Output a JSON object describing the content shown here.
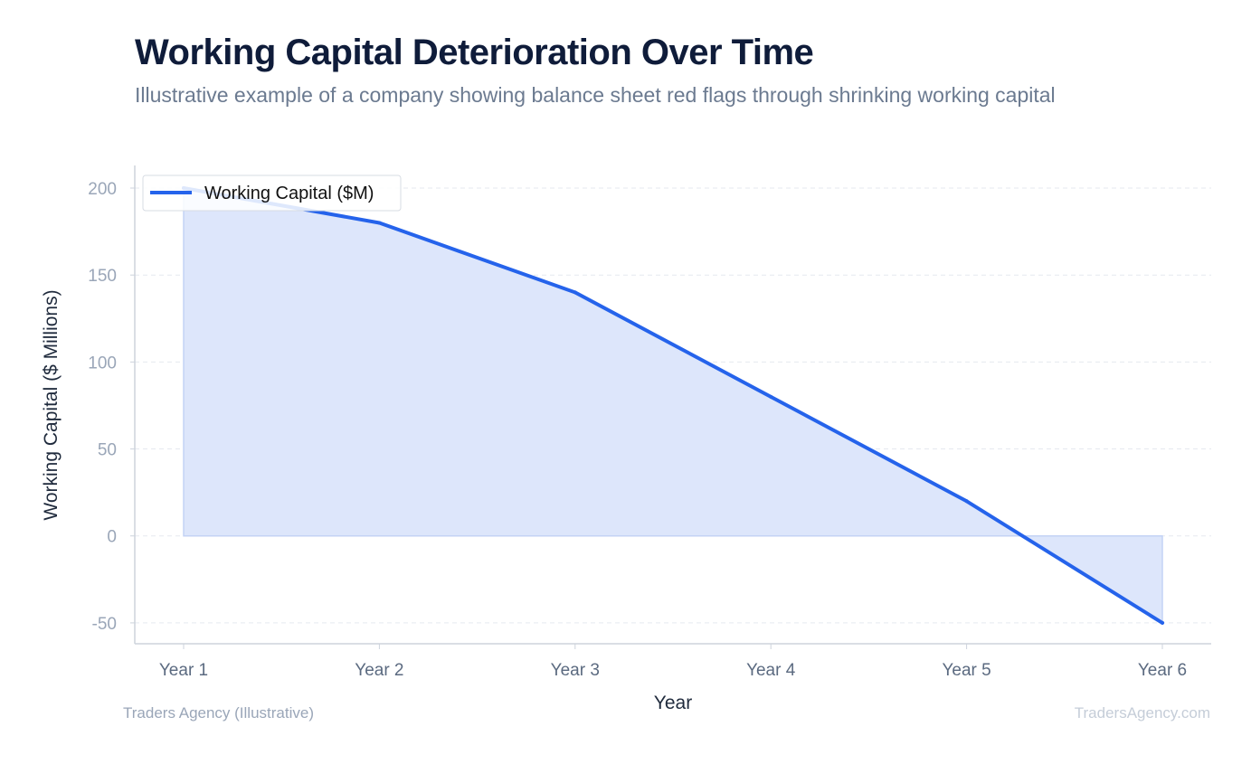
{
  "header": {
    "title": "Working Capital Deterioration Over Time",
    "subtitle": "Illustrative example of a company showing balance sheet red flags through shrinking working capital"
  },
  "footer": {
    "source": "Traders Agency (Illustrative)",
    "watermark": "TradersAgency.com"
  },
  "chart_data": {
    "type": "area",
    "categories": [
      "Year 1",
      "Year 2",
      "Year 3",
      "Year 4",
      "Year 5",
      "Year 6"
    ],
    "series": [
      {
        "name": "Working Capital ($M)",
        "values": [
          200,
          180,
          140,
          80,
          20,
          -50
        ],
        "color": "#2563eb",
        "fill": "#dde6fb"
      }
    ],
    "xlabel": "Year",
    "ylabel": "Working Capital ($ Millions)",
    "ylim": [
      -62,
      213
    ],
    "yticks": [
      -50,
      0,
      50,
      100,
      150,
      200
    ],
    "grid": true,
    "legend": "top-left"
  }
}
